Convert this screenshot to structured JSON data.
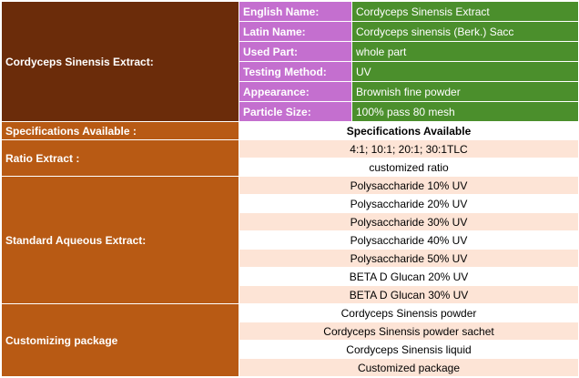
{
  "product_label": "Cordyceps Sinensis  Extract:",
  "properties": [
    {
      "key": "English Name:",
      "value": "Cordyceps Sinensis Extract"
    },
    {
      "key": "Latin Name:",
      "value": "Cordyceps sinensis (Berk.) Sacc"
    },
    {
      "key": "Used Part:",
      "value": "whole part"
    },
    {
      "key": "Testing Method:",
      "value": "UV"
    },
    {
      "key": "Appearance:",
      "value": "Brownish fine powder"
    },
    {
      "key": "Particle Size:",
      "value": "100% pass 80 mesh"
    }
  ],
  "spec_available": {
    "label": "Specifications Available  :",
    "value": "Specifications Available"
  },
  "ratio_extract": {
    "label": "Ratio Extract :",
    "values": [
      "4:1; 10:1; 20:1; 30:1TLC",
      "customized ratio"
    ]
  },
  "standard_aqueous": {
    "label": "Standard Aqueous Extract:",
    "values": [
      "Polysaccharide 10% UV",
      "Polysaccharide 20% UV",
      "Polysaccharide 30% UV",
      "Polysaccharide 40% UV",
      "Polysaccharide 50% UV",
      "BETA D Glucan 20% UV",
      "BETA D Glucan 30% UV"
    ]
  },
  "customizing": {
    "label": "Customizing package",
    "values": [
      "Cordyceps Sinensis powder",
      "Cordyceps Sinensis powder sachet",
      "Cordyceps Sinensis liquid",
      "Customized package"
    ]
  }
}
